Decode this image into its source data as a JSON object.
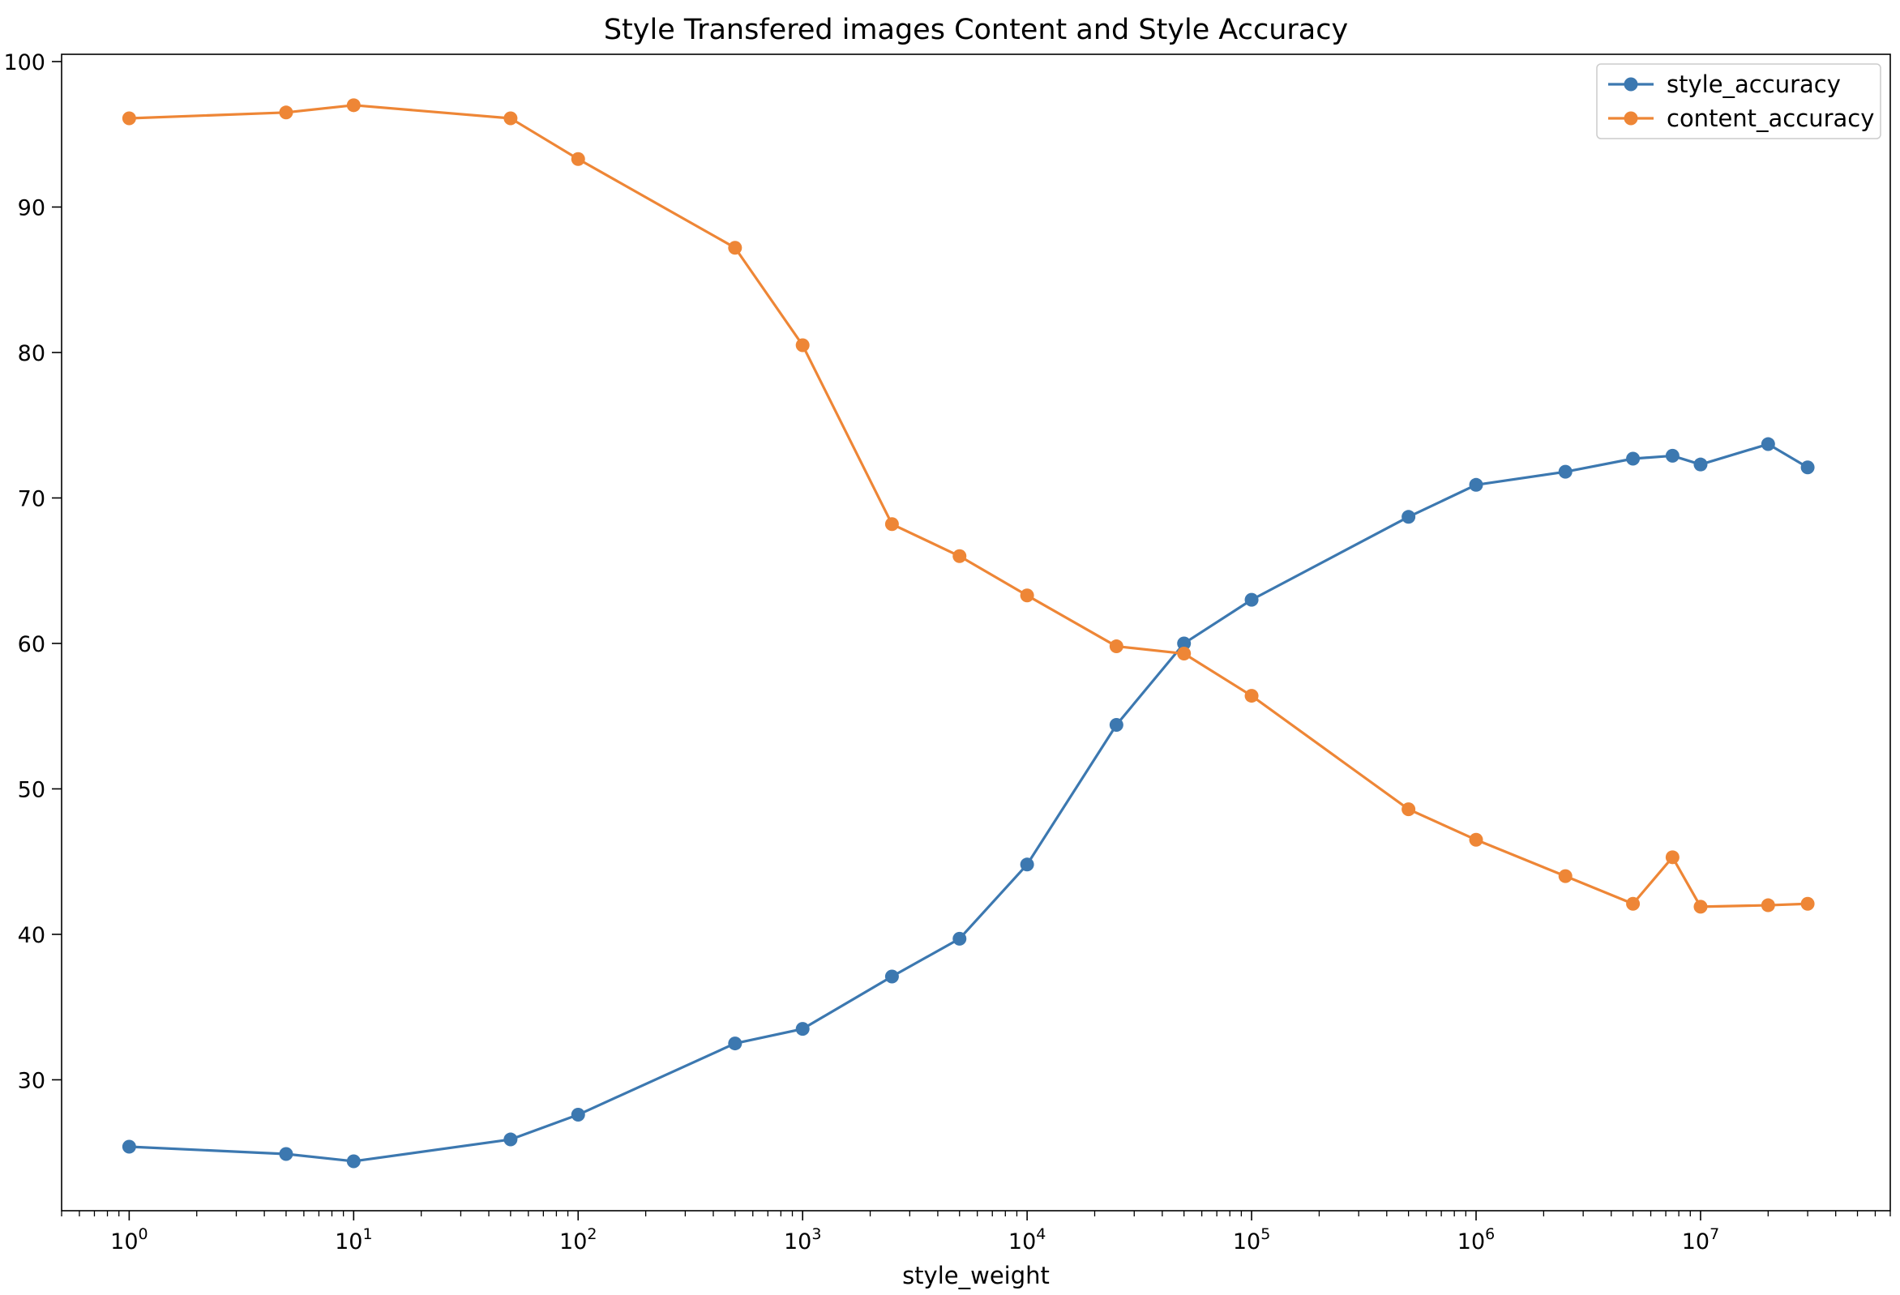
{
  "chart_data": {
    "type": "line",
    "title": "Style Transfered images Content and Style Accuracy",
    "xlabel": "style_weight",
    "ylabel": "",
    "xscale": "log",
    "xlim": [
      0.5,
      70000000
    ],
    "ylim": [
      21,
      100.5
    ],
    "x_ticks": [
      {
        "value": 1,
        "base": "10",
        "exp": "0"
      },
      {
        "value": 10,
        "base": "10",
        "exp": "1"
      },
      {
        "value": 100,
        "base": "10",
        "exp": "2"
      },
      {
        "value": 1000,
        "base": "10",
        "exp": "3"
      },
      {
        "value": 10000,
        "base": "10",
        "exp": "4"
      },
      {
        "value": 100000,
        "base": "10",
        "exp": "5"
      },
      {
        "value": 1000000,
        "base": "10",
        "exp": "6"
      },
      {
        "value": 10000000,
        "base": "10",
        "exp": "7"
      }
    ],
    "y_ticks": [
      {
        "value": 30,
        "label": "30"
      },
      {
        "value": 40,
        "label": "40"
      },
      {
        "value": 50,
        "label": "50"
      },
      {
        "value": 60,
        "label": "60"
      },
      {
        "value": 70,
        "label": "70"
      },
      {
        "value": 80,
        "label": "80"
      },
      {
        "value": 90,
        "label": "90"
      },
      {
        "value": 100,
        "label": "100"
      }
    ],
    "grid": false,
    "legend_position": "top-right",
    "x": [
      1,
      5,
      10,
      50,
      100,
      500,
      1000,
      2500,
      5000,
      10000,
      25000,
      50000,
      100000,
      500000,
      1000000,
      2500000,
      5000000,
      7500000,
      10000000,
      20000000,
      30000000
    ],
    "series": [
      {
        "name": "style_accuracy",
        "color": "#3c78b0",
        "values": [
          25.4,
          24.9,
          24.4,
          25.9,
          27.6,
          32.5,
          33.5,
          37.1,
          39.7,
          44.8,
          54.4,
          60.0,
          63.0,
          68.7,
          70.9,
          71.8,
          72.7,
          72.9,
          72.3,
          73.7,
          72.1
        ]
      },
      {
        "name": "content_accuracy",
        "color": "#ee8636",
        "values": [
          96.1,
          96.5,
          97.0,
          96.1,
          93.3,
          87.2,
          80.5,
          68.2,
          66.0,
          63.3,
          59.8,
          59.3,
          56.4,
          48.6,
          46.5,
          44.0,
          42.1,
          45.3,
          41.9,
          42.0,
          42.1
        ]
      }
    ]
  }
}
